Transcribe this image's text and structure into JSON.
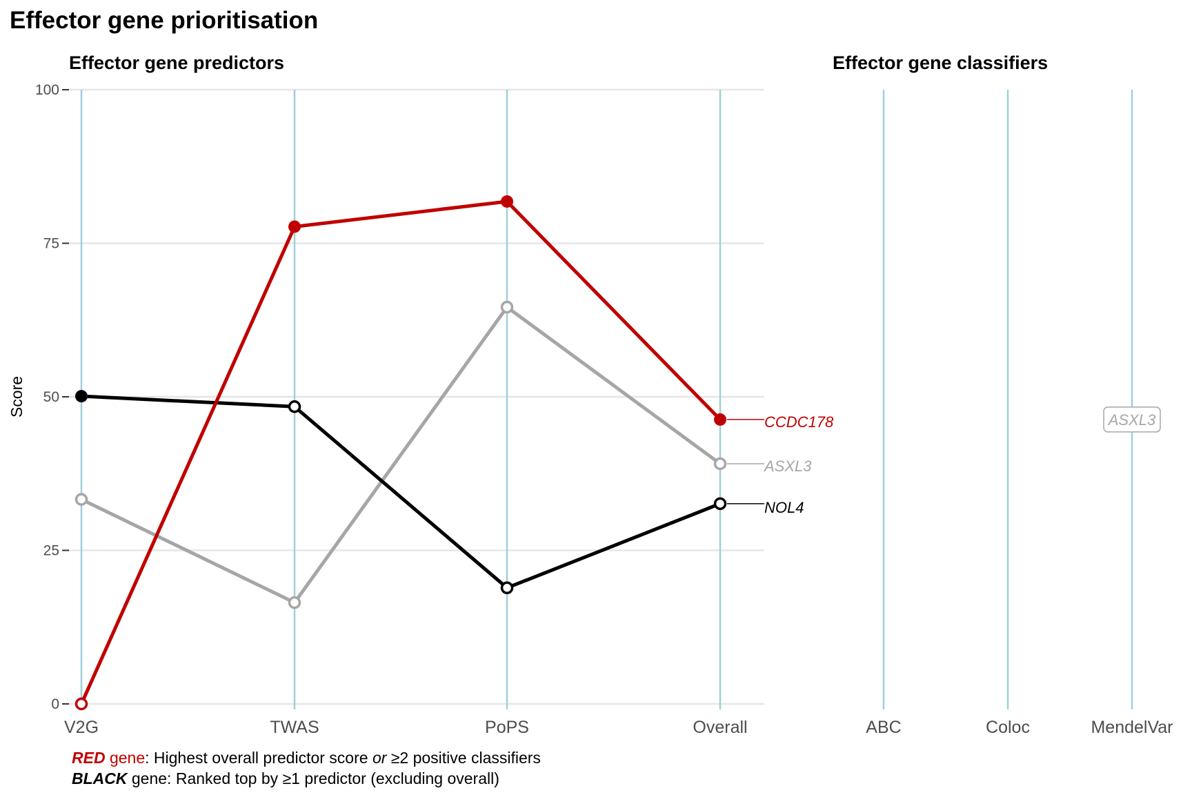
{
  "chart_data": {
    "type": "line",
    "title": "Effector gene prioritisation",
    "ylabel": "Score",
    "ylim": [
      0,
      100
    ],
    "yticks": [
      0,
      25,
      50,
      75,
      100
    ],
    "grid": true,
    "panels": [
      {
        "subtitle": "Effector gene predictors",
        "categories": [
          "V2G",
          "TWAS",
          "PoPS",
          "Overall"
        ],
        "series": [
          {
            "name": "CCDC178",
            "color": "#c00000",
            "marker": "filled-except-first",
            "values": [
              0,
              77.7,
              81.8,
              46.3
            ]
          },
          {
            "name": "ASXL3",
            "color": "#a6a6a6",
            "marker": "open",
            "values": [
              33.3,
              16.5,
              64.6,
              39.1
            ]
          },
          {
            "name": "NOL4",
            "color": "#000000",
            "marker": "mixed",
            "values": [
              50.1,
              48.4,
              18.9,
              32.6
            ]
          }
        ]
      },
      {
        "subtitle": "Effector gene classifiers",
        "categories": [
          "ABC",
          "Coloc",
          "MendelVar"
        ],
        "labels": [
          {
            "category": "MendelVar",
            "value": 46.3,
            "text": "ASXL3",
            "color": "#a6a6a6"
          }
        ]
      }
    ],
    "colors": {
      "red": "#c00000",
      "grey": "#a6a6a6",
      "black": "#000000",
      "vline": "#9fcfdb",
      "grid": "#e6e6e6"
    }
  },
  "footnote": {
    "line1_strong": "RED",
    "line1_word": " gene",
    "line1_a": ": Highest overall predictor score ",
    "line1_or": "or",
    "line1_b": " ≥2 positive classifiers",
    "line2_strong": "BLACK",
    "line2_rest": " gene: Ranked top by ≥1 predictor (excluding overall)"
  }
}
